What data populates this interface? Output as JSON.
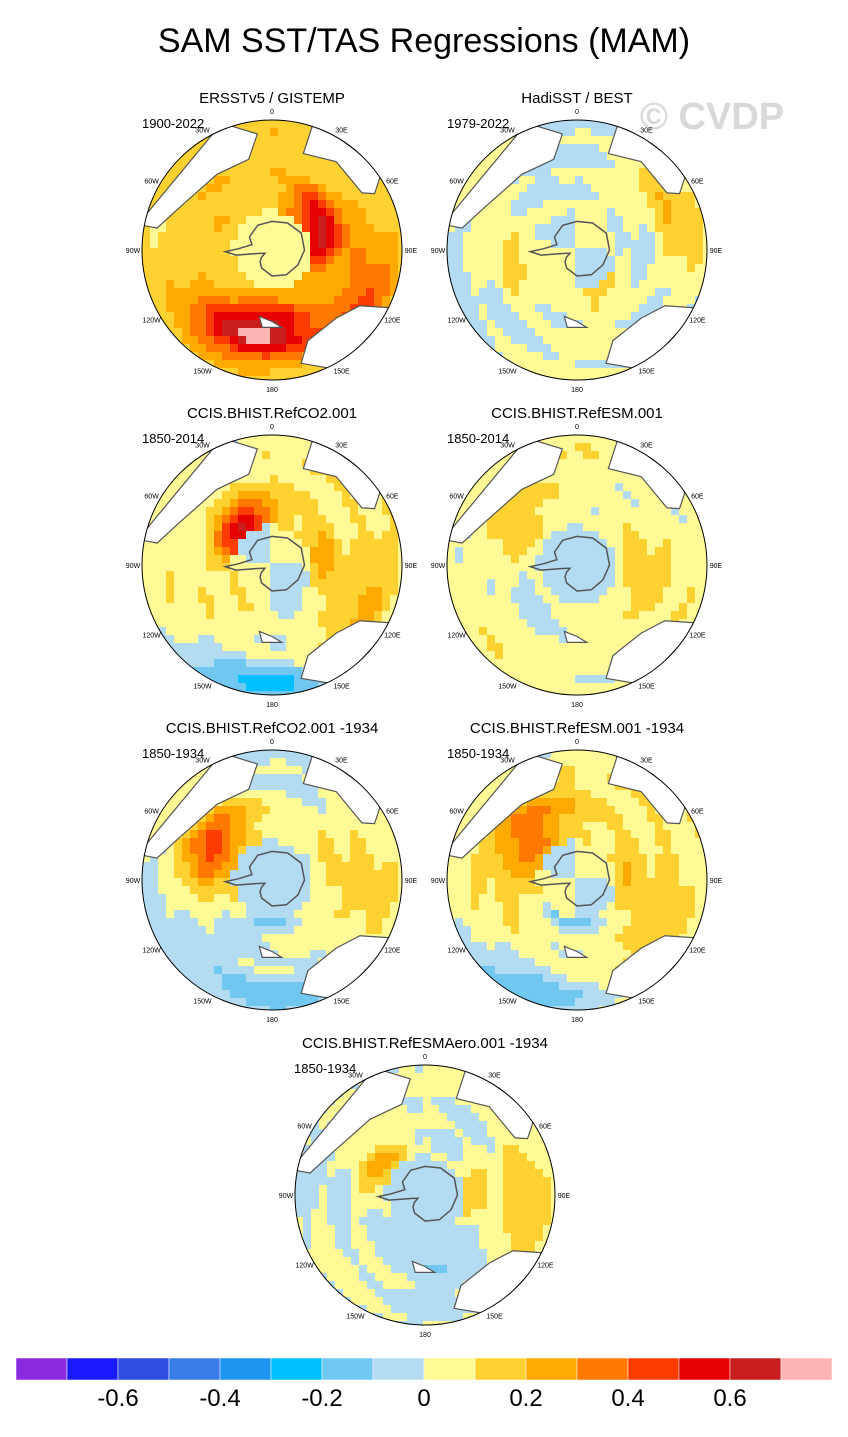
{
  "title": "SAM SST/TAS Regressions (MAM)",
  "watermark": "© CVDP",
  "colors": {
    "ocean_base": "#b3dcf2",
    "land": "#ffffff",
    "coast": "#555555",
    "levels": [
      "#8a2be2",
      "#1919ff",
      "#2e4ee0",
      "#3b7de8",
      "#1e96f0",
      "#00bfff",
      "#70c8f0",
      "#b3dcf2",
      "#fffa96",
      "#ffd232",
      "#ffaa00",
      "#ff7800",
      "#ff3c00",
      "#e60000",
      "#c81e1e",
      "#ffb4b4"
    ]
  },
  "chart_data": [
    {
      "type": "heatmap",
      "id": "p1",
      "title": "ERSSTv5 / GISTEMP",
      "years": "1900-2022",
      "base": 0.15,
      "blobs": [
        [
          0.3,
          0.55,
          0.5
        ],
        [
          0.32,
          0.3,
          0.25
        ],
        [
          0.4,
          0.7,
          0.55
        ],
        [
          0.25,
          0.8,
          0.35
        ],
        [
          0.35,
          0.45,
          0.15
        ]
      ],
      "south": 0.05
    },
    {
      "type": "heatmap",
      "id": "p2",
      "title": "HadiSST / BEST",
      "years": "1979-2022",
      "base": 0.0,
      "blobs": [
        [
          0.15,
          0.3,
          0.45
        ],
        [
          0.12,
          0.5,
          0.7
        ],
        [
          0.18,
          0.8,
          0.2
        ],
        [
          0.1,
          0.15,
          0.9
        ]
      ],
      "south": 0.0
    },
    {
      "type": "heatmap",
      "id": "p3",
      "title": "CCIS.BHIST.RefCO2.001",
      "years": "1850-2014",
      "base": 0.05,
      "blobs": [
        [
          -0.5,
          0.1,
          0.4
        ],
        [
          0.35,
          0.2,
          0.82
        ],
        [
          0.45,
          0.4,
          0.9
        ],
        [
          0.2,
          0.4,
          0.2
        ],
        [
          0.2,
          0.8,
          0.3
        ],
        [
          -0.3,
          0.95,
          0.5
        ]
      ],
      "south": 0.0
    },
    {
      "type": "heatmap",
      "id": "p4",
      "title": "CCIS.BHIST.RefESM.001",
      "years": "1850-2014",
      "base": 0.05,
      "blobs": [
        [
          -0.15,
          0.05,
          0.5
        ],
        [
          0.1,
          0.6,
          0.85
        ],
        [
          0.1,
          0.5,
          0.3
        ],
        [
          -0.1,
          0.5,
          0.6
        ]
      ],
      "south": -0.05
    },
    {
      "type": "heatmap",
      "id": "p5",
      "title": "CCIS.BHIST.RefCO2.001 -1934",
      "years": "1850-1934",
      "base": 0.0,
      "blobs": [
        [
          -0.3,
          0.15,
          0.5
        ],
        [
          0.25,
          0.25,
          0.8
        ],
        [
          0.45,
          0.55,
          0.85
        ],
        [
          0.15,
          0.5,
          0.25
        ],
        [
          0.15,
          0.8,
          0.3
        ],
        [
          -0.2,
          0.9,
          0.5
        ]
      ],
      "south": -0.05
    },
    {
      "type": "heatmap",
      "id": "p6",
      "title": "CCIS.BHIST.RefESM.001 -1934",
      "years": "1850-1934",
      "base": 0.05,
      "blobs": [
        [
          -0.35,
          0.2,
          0.55
        ],
        [
          0.25,
          0.35,
          0.82
        ],
        [
          0.3,
          0.6,
          0.88
        ],
        [
          0.15,
          0.4,
          0.2
        ],
        [
          0.15,
          0.75,
          0.3
        ],
        [
          -0.2,
          0.95,
          0.55
        ]
      ],
      "south": 0.0
    },
    {
      "type": "heatmap",
      "id": "p7",
      "title": "CCIS.BHIST.RefESMAero.001 -1934",
      "years": "1850-1934",
      "base": 0.0,
      "blobs": [
        [
          -0.2,
          0.1,
          0.45
        ],
        [
          0.2,
          0.4,
          0.85
        ],
        [
          0.15,
          0.35,
          0.25
        ],
        [
          0.2,
          0.8,
          0.25
        ],
        [
          -0.1,
          0.5,
          0.5
        ]
      ],
      "south": -0.05
    }
  ],
  "lon_labels": [
    "0",
    "30E",
    "60E",
    "90E",
    "120E",
    "150E",
    "180",
    "150W",
    "120W",
    "90W",
    "60W",
    "30W"
  ],
  "colorbar": {
    "contours": [
      -0.7,
      -0.6,
      -0.5,
      -0.4,
      -0.3,
      -0.2,
      -0.1,
      0,
      0.1,
      0.2,
      0.3,
      0.4,
      0.5,
      0.6,
      0.7
    ],
    "tick_labels": [
      "-0.6",
      "-0.4",
      "-0.2",
      "0",
      "0.2",
      "0.4",
      "0.6"
    ],
    "tick_values": [
      -0.6,
      -0.4,
      -0.2,
      0,
      0.2,
      0.4,
      0.6
    ]
  }
}
